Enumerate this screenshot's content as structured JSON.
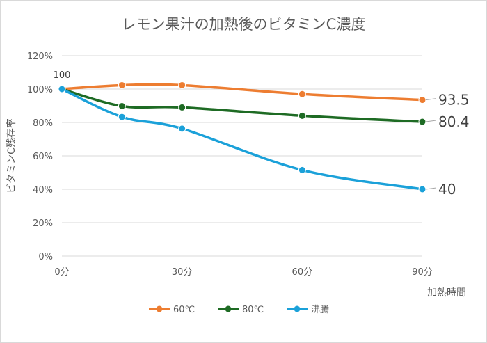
{
  "chart_data": {
    "type": "line",
    "title": "レモン果汁の加熱後のビタミンC濃度",
    "xlabel": "加熱時間",
    "ylabel": "ビタミンC残存率",
    "x_ticks": [
      {
        "value": 0,
        "label": "0分"
      },
      {
        "value": 30,
        "label": "30分"
      },
      {
        "value": 60,
        "label": "60分"
      },
      {
        "value": 90,
        "label": "90分"
      }
    ],
    "y_ticks": [
      {
        "value": 0,
        "label": "0%"
      },
      {
        "value": 20,
        "label": "20%"
      },
      {
        "value": 40,
        "label": "40%"
      },
      {
        "value": 60,
        "label": "60%"
      },
      {
        "value": 80,
        "label": "80%"
      },
      {
        "value": 100,
        "label": "100%"
      },
      {
        "value": 120,
        "label": "120%"
      }
    ],
    "xlim": [
      0,
      90
    ],
    "ylim": [
      0,
      120
    ],
    "grid": true,
    "legend_position": "bottom",
    "smoothed": true,
    "series": [
      {
        "name": "60℃",
        "color": "#ED7D31",
        "x": [
          0,
          15,
          30,
          60,
          90
        ],
        "y": [
          100,
          102.3,
          102.3,
          97,
          93.5
        ]
      },
      {
        "name": "80℃",
        "color": "#1E6B24",
        "x": [
          0,
          15,
          30,
          60,
          90
        ],
        "y": [
          100,
          89.8,
          89,
          84,
          80.4
        ]
      },
      {
        "name": "沸騰",
        "color": "#1BA1D9",
        "x": [
          0,
          15,
          30,
          60,
          90
        ],
        "y": [
          100,
          83.3,
          76.3,
          51.5,
          40
        ]
      }
    ],
    "annotations": [
      {
        "text": "100",
        "x": 0,
        "y": 100,
        "position": "above"
      },
      {
        "text": "93.5",
        "series": "60℃",
        "x": 90,
        "y": 93.5,
        "position": "right"
      },
      {
        "text": "80.4",
        "series": "80℃",
        "x": 90,
        "y": 80.4,
        "position": "right"
      },
      {
        "text": "40",
        "series": "沸騰",
        "x": 90,
        "y": 40,
        "position": "right"
      }
    ]
  }
}
